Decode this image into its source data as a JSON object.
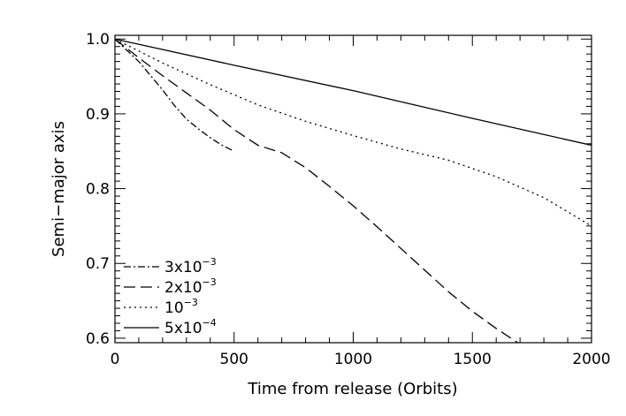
{
  "chart_data": {
    "type": "line",
    "xlabel": "Time from release (Orbits)",
    "ylabel": "Semi−major axis",
    "xlim": [
      0,
      2000
    ],
    "ylim": [
      0.594,
      1.005
    ],
    "xticks": [
      0,
      500,
      1000,
      1500,
      2000
    ],
    "xtick_labels": [
      "0",
      "500",
      "1000",
      "1500",
      "2000"
    ],
    "yticks": [
      0.6,
      0.7,
      0.8,
      0.9,
      1.0
    ],
    "ytick_labels": [
      "0.6",
      "0.7",
      "0.8",
      "0.9",
      "1.0"
    ],
    "grid": false,
    "legend_position": "bottom-left",
    "series": [
      {
        "name": "3x10−3",
        "legend_base": "3x10",
        "legend_exp": "−3",
        "dash": "dashdot",
        "x": [
          0,
          50,
          100,
          150,
          200,
          250,
          300,
          350,
          400,
          450,
          500
        ],
        "y": [
          1.0,
          0.985,
          0.97,
          0.951,
          0.932,
          0.911,
          0.893,
          0.88,
          0.868,
          0.858,
          0.85
        ]
      },
      {
        "name": "2x10−3",
        "legend_base": "2x10",
        "legend_exp": "−3",
        "dash": "longdash",
        "x": [
          0,
          100,
          200,
          300,
          400,
          500,
          600,
          700,
          800,
          900,
          1000,
          1100,
          1200,
          1300,
          1400,
          1500,
          1600,
          1700,
          1740
        ],
        "y": [
          1.0,
          0.975,
          0.951,
          0.928,
          0.905,
          0.879,
          0.858,
          0.848,
          0.828,
          0.803,
          0.777,
          0.749,
          0.72,
          0.691,
          0.662,
          0.636,
          0.613,
          0.592,
          0.584
        ]
      },
      {
        "name": "10−3",
        "legend_base": "10",
        "legend_exp": "−3",
        "dash": "dotted",
        "x": [
          0,
          200,
          400,
          600,
          800,
          1000,
          1200,
          1400,
          1600,
          1800,
          2000
        ],
        "y": [
          1.0,
          0.968,
          0.939,
          0.912,
          0.89,
          0.871,
          0.853,
          0.838,
          0.816,
          0.788,
          0.75
        ]
      },
      {
        "name": "5x10−4",
        "legend_base": "5x10",
        "legend_exp": "−4",
        "dash": "solid",
        "x": [
          0,
          500,
          1000,
          1500,
          2000
        ],
        "y": [
          1.0,
          0.965,
          0.931,
          0.894,
          0.858
        ]
      }
    ]
  }
}
